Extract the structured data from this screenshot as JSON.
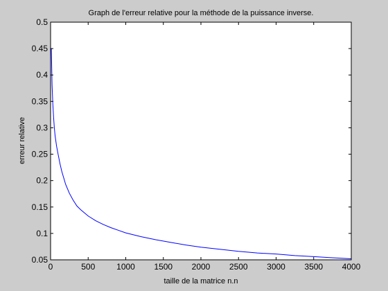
{
  "chart_data": {
    "type": "line",
    "title": "Graph de l'erreur relative pour la méthode de la puissance inverse.",
    "xlabel": "taille de la matrice n.n",
    "ylabel": "erreur relative",
    "xlim": [
      0,
      4000
    ],
    "ylim": [
      0.05,
      0.5
    ],
    "xticks": [
      0,
      500,
      1000,
      1500,
      2000,
      2500,
      3000,
      3500,
      4000
    ],
    "xtick_labels": [
      "0",
      "500",
      "1000",
      "1500",
      "2000",
      "2500",
      "3000",
      "3500",
      "4000"
    ],
    "yticks": [
      0.05,
      0.1,
      0.15,
      0.2,
      0.25,
      0.3,
      0.35,
      0.4,
      0.45,
      0.5
    ],
    "ytick_labels": [
      "0.05",
      "0.1",
      "0.15",
      "0.2",
      "0.25",
      "0.3",
      "0.35",
      "0.4",
      "0.45",
      "0.5"
    ],
    "grid": false,
    "series": [
      {
        "name": "erreur relative",
        "color": "#0000ff",
        "x": [
          10,
          20,
          30,
          40,
          50,
          60,
          80,
          100,
          125,
          150,
          200,
          250,
          300,
          350,
          400,
          500,
          600,
          700,
          800,
          900,
          1000,
          1200,
          1400,
          1600,
          1800,
          2000,
          2250,
          2500,
          2750,
          3000,
          3250,
          3500,
          3750,
          4000
        ],
        "y": [
          0.45,
          0.38,
          0.345,
          0.32,
          0.3,
          0.285,
          0.265,
          0.25,
          0.232,
          0.217,
          0.193,
          0.176,
          0.163,
          0.152,
          0.145,
          0.133,
          0.124,
          0.117,
          0.111,
          0.106,
          0.101,
          0.094,
          0.088,
          0.083,
          0.078,
          0.074,
          0.07,
          0.066,
          0.063,
          0.061,
          0.058,
          0.056,
          0.054,
          0.052
        ]
      }
    ]
  }
}
